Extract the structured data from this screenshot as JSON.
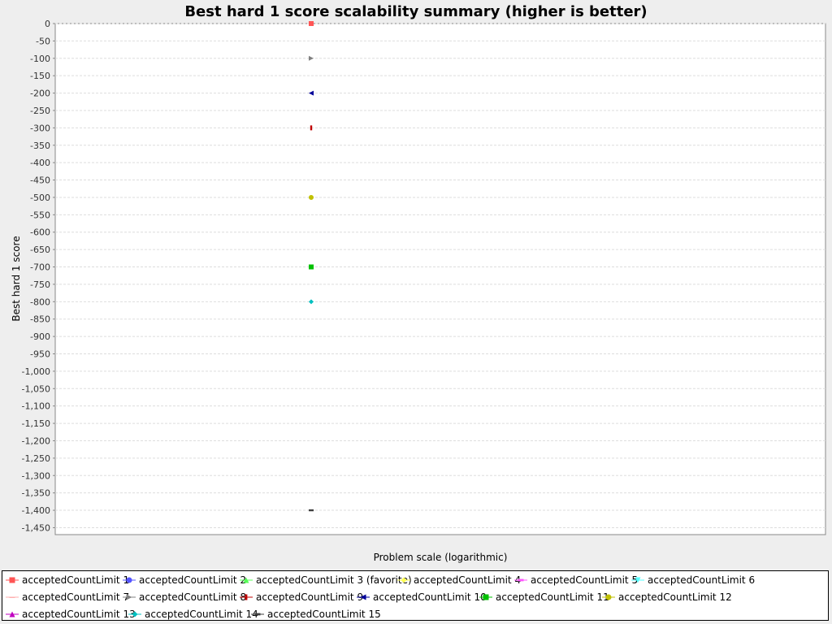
{
  "chart_data": {
    "type": "scatter",
    "title": "Best hard 1 score scalability summary (higher is better)",
    "xlabel": "Problem scale (logarithmic)",
    "ylabel": "Best hard 1 score",
    "x_scale": "log",
    "ylim": [
      -1470,
      0
    ],
    "yticks": [
      0,
      -50,
      -100,
      -150,
      -200,
      -250,
      -300,
      -350,
      -400,
      -450,
      -500,
      -550,
      -600,
      -650,
      -700,
      -750,
      -800,
      -850,
      -900,
      -950,
      -1000,
      -1050,
      -1100,
      -1150,
      -1200,
      -1250,
      -1300,
      -1350,
      -1400,
      -1450
    ],
    "ytick_labels": [
      "0",
      "-50",
      "-100",
      "-150",
      "-200",
      "-250",
      "-300",
      "-350",
      "-400",
      "-450",
      "-500",
      "-550",
      "-600",
      "-650",
      "-700",
      "-750",
      "-800",
      "-850",
      "-900",
      "-950",
      "-1,000",
      "-1,050",
      "-1,100",
      "-1,150",
      "-1,200",
      "-1,250",
      "-1,300",
      "-1,350",
      "-1,400",
      "-1,450"
    ],
    "grid": true,
    "legend_placement": "bottom",
    "series": [
      {
        "name": "acceptedCountLimit 1",
        "color": "#ff5555",
        "marker": "square",
        "values": [
          0
        ]
      },
      {
        "name": "acceptedCountLimit 2",
        "color": "#5555ff",
        "marker": "circle",
        "values": [
          null
        ]
      },
      {
        "name": "acceptedCountLimit 3 (favorite)",
        "color": "#55ff55",
        "marker": "triangle-up",
        "values": [
          null
        ]
      },
      {
        "name": "acceptedCountLimit 4",
        "color": "#ffff55",
        "marker": "diamond",
        "values": [
          -500
        ]
      },
      {
        "name": "acceptedCountLimit 5",
        "color": "#ff55ff",
        "marker": "hbar",
        "values": [
          null
        ]
      },
      {
        "name": "acceptedCountLimit 6",
        "color": "#55ffff",
        "marker": "triangle-down",
        "values": [
          null
        ]
      },
      {
        "name": "acceptedCountLimit 7",
        "color": "#ffafaf",
        "marker": "hline",
        "values": [
          null
        ]
      },
      {
        "name": "acceptedCountLimit 8",
        "color": "#808080",
        "marker": "triangle-right",
        "values": [
          -100
        ]
      },
      {
        "name": "acceptedCountLimit 9",
        "color": "#c00000",
        "marker": "vbar",
        "values": [
          -300
        ]
      },
      {
        "name": "acceptedCountLimit 10",
        "color": "#000099",
        "marker": "triangle-left",
        "values": [
          -200
        ]
      },
      {
        "name": "acceptedCountLimit 11",
        "color": "#00c000",
        "marker": "square",
        "values": [
          -700
        ]
      },
      {
        "name": "acceptedCountLimit 12",
        "color": "#c0c000",
        "marker": "circle",
        "values": [
          -500
        ]
      },
      {
        "name": "acceptedCountLimit 13",
        "color": "#c000c0",
        "marker": "triangle-up",
        "values": [
          null
        ]
      },
      {
        "name": "acceptedCountLimit 14",
        "color": "#00c0c0",
        "marker": "diamond",
        "values": [
          -800
        ]
      },
      {
        "name": "acceptedCountLimit 15",
        "color": "#404040",
        "marker": "hbar",
        "values": [
          -1400
        ]
      }
    ]
  }
}
